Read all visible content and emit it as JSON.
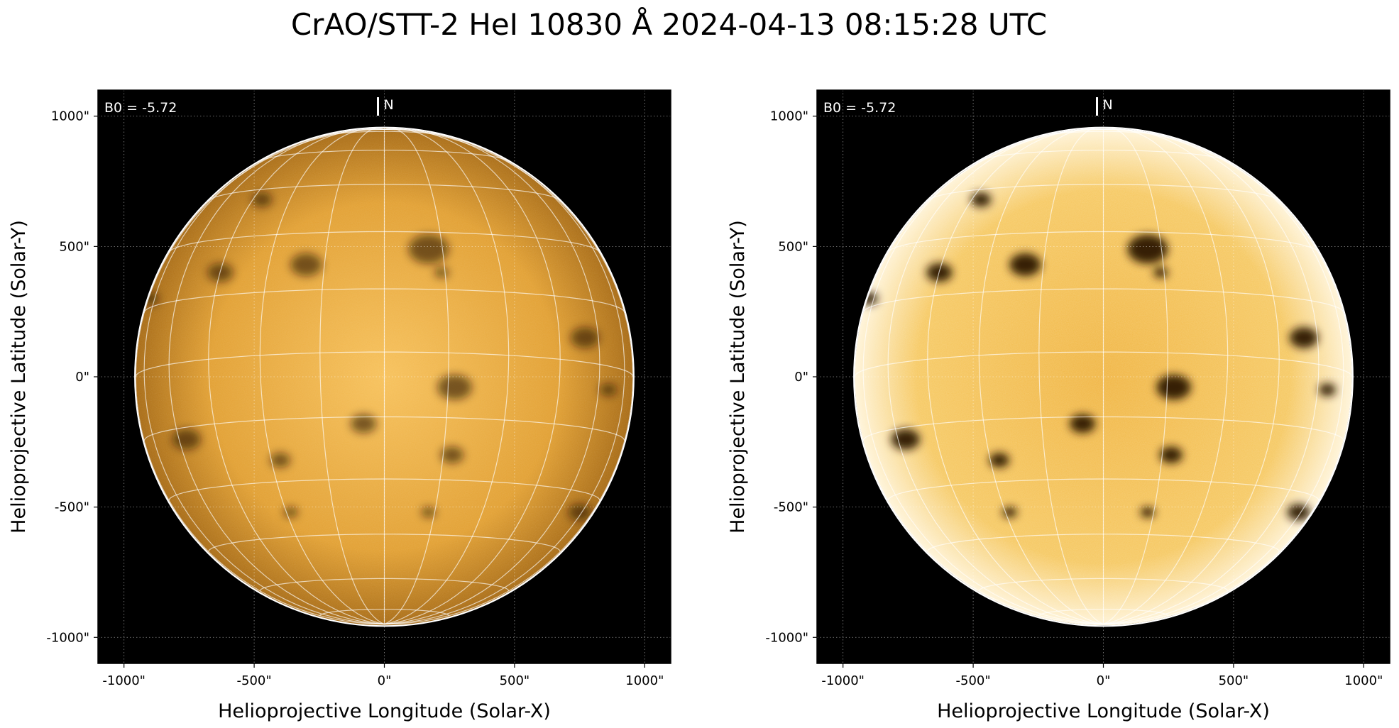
{
  "title": "CrAO/STT-2 HeI 10830 Å 2024-04-13 08:15:28 UTC",
  "colors": {
    "background": "#ffffff",
    "plot_background": "#000000",
    "disk_light": "#f7c15a",
    "disk_mid": "#e2a032",
    "disk_edge": "#a86b14",
    "grid": "#ffffff"
  },
  "panels": [
    {
      "id": "left",
      "b0_label": "B0 = -5.72",
      "north_label": "N",
      "xlabel": "Helioprojective Longitude (Solar-X)",
      "ylabel": "Helioprojective Latitude (Solar-Y)",
      "x_ticks": [
        "-1000\"",
        "-500\"",
        "0\"",
        "500\"",
        "1000\""
      ],
      "y_ticks": [
        "1000\"",
        "500\"",
        "0\"",
        "-500\"",
        "-1000\""
      ],
      "x_tick_values": [
        -1000,
        -500,
        0,
        500,
        1000
      ],
      "y_tick_values": [
        1000,
        500,
        0,
        -500,
        -1000
      ],
      "xlim": [
        -1100,
        1100
      ],
      "ylim": [
        -1100,
        1100
      ],
      "solar_radius_arcsec": 955,
      "contrast": "normal"
    },
    {
      "id": "right",
      "b0_label": "B0 = -5.72",
      "north_label": "N",
      "xlabel": "Helioprojective Longitude (Solar-X)",
      "ylabel": "Helioprojective Latitude (Solar-Y)",
      "x_ticks": [
        "-1000\"",
        "-500\"",
        "0\"",
        "500\"",
        "1000\""
      ],
      "y_ticks": [
        "1000\"",
        "500\"",
        "0\"",
        "-500\"",
        "-1000\""
      ],
      "x_tick_values": [
        -1000,
        -500,
        0,
        500,
        1000
      ],
      "y_tick_values": [
        1000,
        500,
        0,
        -500,
        -1000
      ],
      "xlim": [
        -1100,
        1100
      ],
      "ylim": [
        -1100,
        1100
      ],
      "solar_radius_arcsec": 955,
      "contrast": "enhanced"
    }
  ],
  "dark_features": [
    {
      "x": 170,
      "y": 490,
      "size": 70
    },
    {
      "x": -300,
      "y": 430,
      "size": 55
    },
    {
      "x": -630,
      "y": 400,
      "size": 45
    },
    {
      "x": -470,
      "y": 680,
      "size": 35
    },
    {
      "x": 220,
      "y": 400,
      "size": 25
    },
    {
      "x": 770,
      "y": 150,
      "size": 50
    },
    {
      "x": 860,
      "y": -50,
      "size": 30
    },
    {
      "x": 270,
      "y": -40,
      "size": 60
    },
    {
      "x": -760,
      "y": -240,
      "size": 50
    },
    {
      "x": -80,
      "y": -180,
      "size": 45
    },
    {
      "x": 260,
      "y": -300,
      "size": 40
    },
    {
      "x": -400,
      "y": -320,
      "size": 35
    },
    {
      "x": 750,
      "y": -520,
      "size": 40
    },
    {
      "x": -360,
      "y": -520,
      "size": 25
    },
    {
      "x": 170,
      "y": -520,
      "size": 25
    },
    {
      "x": -900,
      "y": 300,
      "size": 30
    }
  ]
}
